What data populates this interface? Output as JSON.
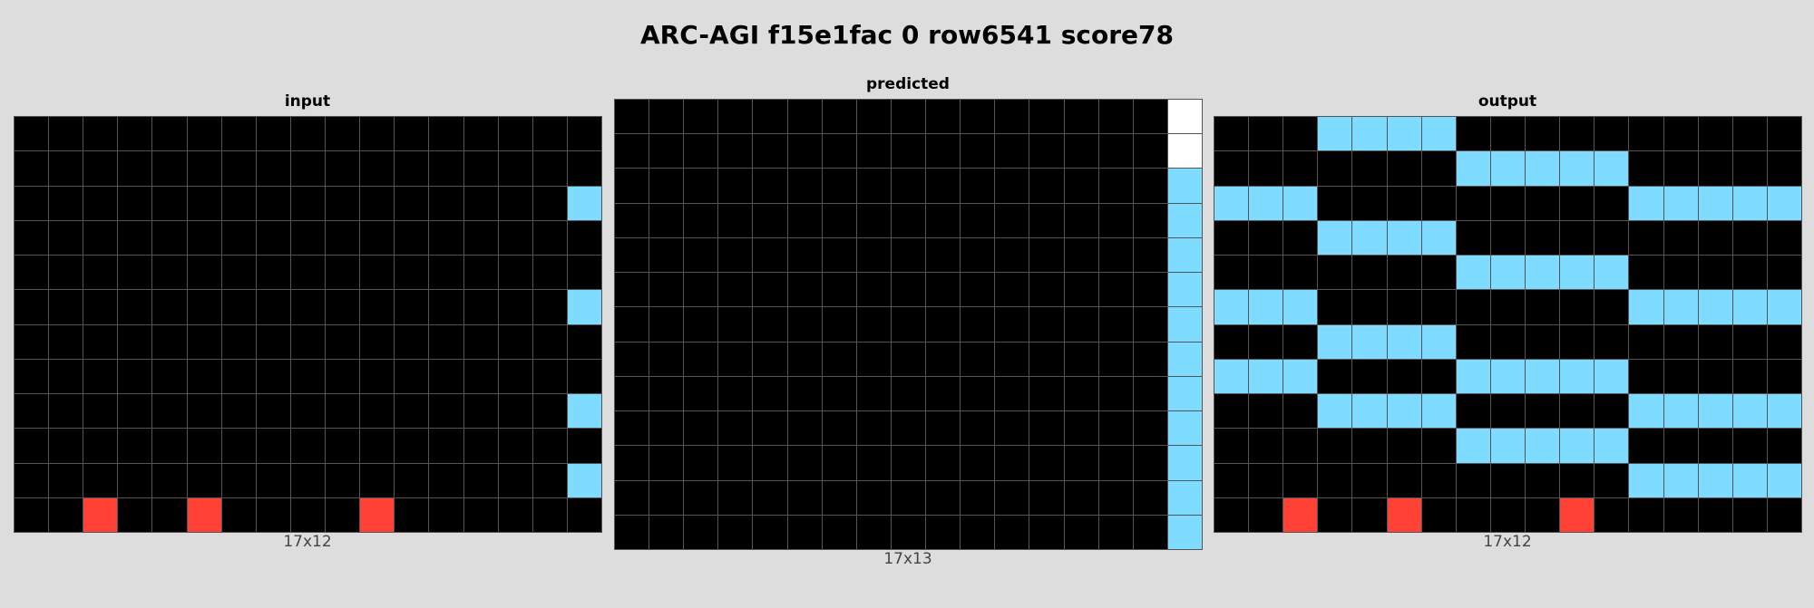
{
  "title": "ARC-AGI f15e1fac 0 row6541 score78",
  "palette": {
    "0": "#000000",
    "2": "#ff4136",
    "8": "#7fdbff",
    "w": "#ffffff"
  },
  "panels": [
    {
      "label": "input",
      "dims": "17x12",
      "cols": 17,
      "rows": 12,
      "cells": [
        "00000000000000000",
        "00000000000000000",
        "00000000000000008",
        "00000000000000000",
        "00000000000000000",
        "00000000000000008",
        "00000000000000000",
        "00000000000000000",
        "00000000000000008",
        "00000000000000000",
        "00000000000000008",
        "00200200002000000"
      ]
    },
    {
      "label": "predicted",
      "dims": "17x13",
      "cols": 17,
      "rows": 13,
      "cells": [
        "0000000000000000w",
        "0000000000000000w",
        "00000000000000008",
        "00000000000000008",
        "00000000000000008",
        "00000000000000008",
        "00000000000000008",
        "00000000000000008",
        "00000000000000008",
        "00000000000000008",
        "00000000000000008",
        "00000000000000008",
        "00000000000000008"
      ]
    },
    {
      "label": "output",
      "dims": "17x12",
      "cols": 17,
      "rows": 12,
      "cells": [
        "00088880000000000",
        "00000008888800000",
        "88800000000088888",
        "00088880000000000",
        "00000008888800000",
        "88800000000088888",
        "00088880000000000",
        "88800008888800000",
        "00088880000088888",
        "00000008888800000",
        "00000000000088888",
        "00200200002000000"
      ]
    }
  ]
}
